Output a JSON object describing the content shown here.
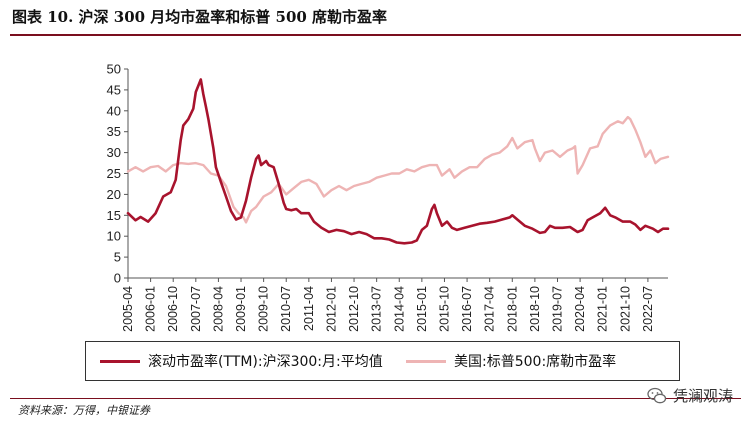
{
  "title": "图表 10.  沪深 300 月均市盈率和标普 500 席勒市盈率",
  "source": "资料来源：万得，中银证券",
  "watermark": "凭澜观涛",
  "colors": {
    "series1": "#a8132d",
    "series2": "#eeb4b4",
    "rule": "#7a0e1e"
  },
  "icons": {
    "watermark": "wechat-logo-icon"
  },
  "chart_data": {
    "type": "line",
    "title": "",
    "xlabel": "",
    "ylabel": "",
    "ylim": [
      0,
      50
    ],
    "yticks": [
      0,
      5,
      10,
      15,
      20,
      25,
      30,
      35,
      40,
      45,
      50
    ],
    "x_tick_labels": [
      "2005-04",
      "2006-01",
      "2006-10",
      "2007-07",
      "2008-04",
      "2009-01",
      "2009-10",
      "2010-07",
      "2011-04",
      "2012-01",
      "2012-10",
      "2013-07",
      "2014-04",
      "2015-01",
      "2015-10",
      "2016-07",
      "2017-04",
      "2018-01",
      "2018-10",
      "2019-07",
      "2020-04",
      "2021-01",
      "2021-10",
      "2022-07"
    ],
    "x_start": "2005-04",
    "x_end": "2023-03",
    "legend_position": "bottom",
    "series": [
      {
        "name": "滚动市盈率(TTM):沪深300:月:平均值",
        "color": "#a8132d",
        "points": [
          [
            "2005-04",
            15.5
          ],
          [
            "2005-07",
            13.8
          ],
          [
            "2005-09",
            14.6
          ],
          [
            "2005-12",
            13.5
          ],
          [
            "2006-03",
            15.5
          ],
          [
            "2006-06",
            19.5
          ],
          [
            "2006-09",
            20.5
          ],
          [
            "2006-11",
            23.5
          ],
          [
            "2007-01",
            33.0
          ],
          [
            "2007-02",
            36.5
          ],
          [
            "2007-04",
            38.0
          ],
          [
            "2007-06",
            40.5
          ],
          [
            "2007-07",
            44.5
          ],
          [
            "2007-09",
            47.5
          ],
          [
            "2007-10",
            44.0
          ],
          [
            "2007-11",
            41.0
          ],
          [
            "2007-12",
            38.0
          ],
          [
            "2008-02",
            31.0
          ],
          [
            "2008-03",
            26.5
          ],
          [
            "2008-05",
            23.0
          ],
          [
            "2008-07",
            19.5
          ],
          [
            "2008-09",
            16.0
          ],
          [
            "2008-11",
            14.0
          ],
          [
            "2009-01",
            14.5
          ],
          [
            "2009-03",
            18.5
          ],
          [
            "2009-05",
            24.0
          ],
          [
            "2009-07",
            28.5
          ],
          [
            "2009-08",
            29.3
          ],
          [
            "2009-09",
            27.0
          ],
          [
            "2009-11",
            28.0
          ],
          [
            "2009-12",
            27.0
          ],
          [
            "2010-02",
            26.5
          ],
          [
            "2010-04",
            22.5
          ],
          [
            "2010-06",
            18.0
          ],
          [
            "2010-07",
            16.5
          ],
          [
            "2010-09",
            16.2
          ],
          [
            "2010-11",
            16.5
          ],
          [
            "2011-01",
            15.5
          ],
          [
            "2011-04",
            15.5
          ],
          [
            "2011-06",
            13.5
          ],
          [
            "2011-09",
            12.0
          ],
          [
            "2011-12",
            11.0
          ],
          [
            "2012-03",
            11.5
          ],
          [
            "2012-06",
            11.2
          ],
          [
            "2012-09",
            10.5
          ],
          [
            "2012-12",
            11.0
          ],
          [
            "2013-03",
            10.5
          ],
          [
            "2013-06",
            9.5
          ],
          [
            "2013-09",
            9.5
          ],
          [
            "2013-12",
            9.2
          ],
          [
            "2014-03",
            8.5
          ],
          [
            "2014-06",
            8.3
          ],
          [
            "2014-09",
            8.5
          ],
          [
            "2014-11",
            9.0
          ],
          [
            "2015-01",
            11.5
          ],
          [
            "2015-03",
            12.5
          ],
          [
            "2015-05",
            16.5
          ],
          [
            "2015-06",
            17.5
          ],
          [
            "2015-07",
            15.5
          ],
          [
            "2015-09",
            12.5
          ],
          [
            "2015-11",
            13.5
          ],
          [
            "2016-01",
            12.0
          ],
          [
            "2016-03",
            11.5
          ],
          [
            "2016-06",
            12.0
          ],
          [
            "2016-09",
            12.5
          ],
          [
            "2016-12",
            13.0
          ],
          [
            "2017-03",
            13.2
          ],
          [
            "2017-06",
            13.5
          ],
          [
            "2017-09",
            14.0
          ],
          [
            "2017-12",
            14.5
          ],
          [
            "2018-01",
            15.0
          ],
          [
            "2018-03",
            14.0
          ],
          [
            "2018-06",
            12.5
          ],
          [
            "2018-09",
            11.8
          ],
          [
            "2018-12",
            10.8
          ],
          [
            "2019-02",
            11.0
          ],
          [
            "2019-04",
            12.5
          ],
          [
            "2019-06",
            12.0
          ],
          [
            "2019-09",
            12.0
          ],
          [
            "2019-12",
            12.2
          ],
          [
            "2020-03",
            11.0
          ],
          [
            "2020-05",
            11.5
          ],
          [
            "2020-07",
            13.8
          ],
          [
            "2020-09",
            14.5
          ],
          [
            "2020-12",
            15.5
          ],
          [
            "2021-02",
            16.8
          ],
          [
            "2021-04",
            15.0
          ],
          [
            "2021-06",
            14.5
          ],
          [
            "2021-09",
            13.5
          ],
          [
            "2021-12",
            13.5
          ],
          [
            "2022-02",
            12.8
          ],
          [
            "2022-04",
            11.5
          ],
          [
            "2022-06",
            12.5
          ],
          [
            "2022-09",
            11.8
          ],
          [
            "2022-11",
            11.0
          ],
          [
            "2023-01",
            11.8
          ],
          [
            "2023-03",
            11.8
          ]
        ]
      },
      {
        "name": "美国:标普500:席勒市盈率",
        "color": "#eeb4b4",
        "points": [
          [
            "2005-04",
            25.5
          ],
          [
            "2005-07",
            26.5
          ],
          [
            "2005-10",
            25.5
          ],
          [
            "2006-01",
            26.5
          ],
          [
            "2006-04",
            26.8
          ],
          [
            "2006-07",
            25.5
          ],
          [
            "2006-10",
            27.0
          ],
          [
            "2007-01",
            27.5
          ],
          [
            "2007-04",
            27.3
          ],
          [
            "2007-07",
            27.5
          ],
          [
            "2007-10",
            27.0
          ],
          [
            "2008-01",
            25.0
          ],
          [
            "2008-04",
            24.5
          ],
          [
            "2008-07",
            22.0
          ],
          [
            "2008-10",
            17.0
          ],
          [
            "2008-12",
            15.5
          ],
          [
            "2009-02",
            14.5
          ],
          [
            "2009-03",
            13.3
          ],
          [
            "2009-05",
            16.0
          ],
          [
            "2009-07",
            17.0
          ],
          [
            "2009-10",
            19.5
          ],
          [
            "2010-01",
            20.5
          ],
          [
            "2010-04",
            22.5
          ],
          [
            "2010-07",
            20.0
          ],
          [
            "2010-10",
            21.5
          ],
          [
            "2011-01",
            23.0
          ],
          [
            "2011-04",
            23.5
          ],
          [
            "2011-07",
            22.5
          ],
          [
            "2011-10",
            19.5
          ],
          [
            "2012-01",
            21.0
          ],
          [
            "2012-04",
            22.0
          ],
          [
            "2012-07",
            21.0
          ],
          [
            "2012-10",
            22.0
          ],
          [
            "2013-01",
            22.5
          ],
          [
            "2013-04",
            23.0
          ],
          [
            "2013-07",
            24.0
          ],
          [
            "2013-10",
            24.5
          ],
          [
            "2014-01",
            25.0
          ],
          [
            "2014-04",
            25.0
          ],
          [
            "2014-07",
            26.0
          ],
          [
            "2014-10",
            25.5
          ],
          [
            "2015-01",
            26.5
          ],
          [
            "2015-04",
            27.0
          ],
          [
            "2015-07",
            27.0
          ],
          [
            "2015-09",
            24.5
          ],
          [
            "2015-12",
            26.0
          ],
          [
            "2016-02",
            24.0
          ],
          [
            "2016-05",
            25.5
          ],
          [
            "2016-08",
            26.5
          ],
          [
            "2016-11",
            26.5
          ],
          [
            "2017-02",
            28.5
          ],
          [
            "2017-05",
            29.5
          ],
          [
            "2017-08",
            30.0
          ],
          [
            "2017-11",
            31.5
          ],
          [
            "2018-01",
            33.5
          ],
          [
            "2018-03",
            31.0
          ],
          [
            "2018-06",
            32.5
          ],
          [
            "2018-09",
            33.0
          ],
          [
            "2018-10",
            31.0
          ],
          [
            "2018-12",
            28.0
          ],
          [
            "2019-02",
            30.0
          ],
          [
            "2019-05",
            30.5
          ],
          [
            "2019-08",
            29.0
          ],
          [
            "2019-11",
            30.5
          ],
          [
            "2020-01",
            31.0
          ],
          [
            "2020-02",
            31.5
          ],
          [
            "2020-03",
            25.0
          ],
          [
            "2020-05",
            27.0
          ],
          [
            "2020-08",
            31.0
          ],
          [
            "2020-11",
            31.5
          ],
          [
            "2021-01",
            34.5
          ],
          [
            "2021-04",
            36.5
          ],
          [
            "2021-07",
            37.5
          ],
          [
            "2021-09",
            37.0
          ],
          [
            "2021-11",
            38.5
          ],
          [
            "2021-12",
            38.0
          ],
          [
            "2022-02",
            35.5
          ],
          [
            "2022-04",
            32.5
          ],
          [
            "2022-06",
            29.0
          ],
          [
            "2022-08",
            30.5
          ],
          [
            "2022-10",
            27.5
          ],
          [
            "2022-12",
            28.5
          ],
          [
            "2023-03",
            29.0
          ]
        ]
      }
    ]
  }
}
